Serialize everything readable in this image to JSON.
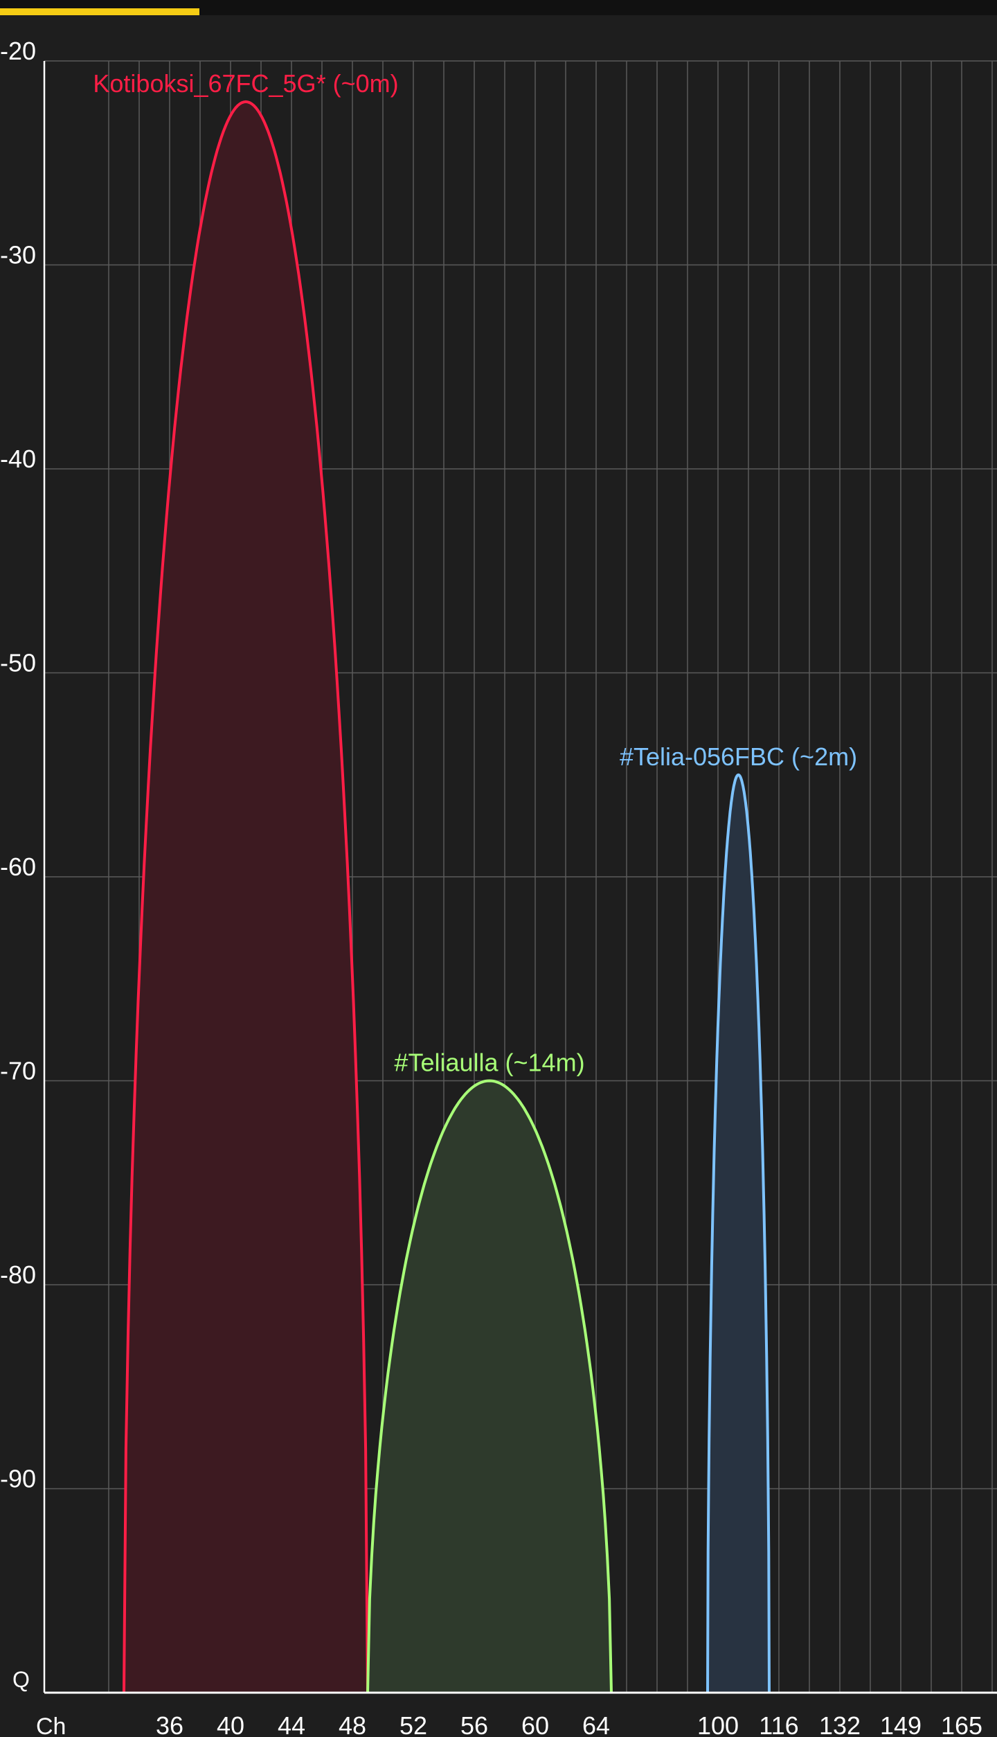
{
  "progress_bar": {
    "value": 0.2,
    "color": "#f5cc14"
  },
  "chart_data": {
    "type": "area",
    "ylim": [
      -100,
      -20
    ],
    "ylabel_bottom": "Q",
    "xlabel": "Ch",
    "y_ticks": [
      -20,
      -30,
      -40,
      -50,
      -60,
      -70,
      -80,
      -90
    ],
    "x_tick_labels": [
      "36",
      "40",
      "44",
      "48",
      "52",
      "56",
      "60",
      "64",
      "100",
      "116",
      "132",
      "149",
      "165"
    ],
    "grid": true,
    "series": [
      {
        "name": "Kotiboksi_67FC_5G* (~0m)",
        "x_start_channel": 35,
        "x_end_channel": 51,
        "peak_channel": 42,
        "peak_dbm": -22,
        "color": "#ff1e46",
        "fill": "#3d1a21"
      },
      {
        "name": "#Teliaulla (~14m)",
        "x_start_channel": 51,
        "x_end_channel": 67,
        "peak_channel": 58,
        "peak_dbm": -70,
        "color": "#a8ff78",
        "fill": "#2e3a2c"
      },
      {
        "name": "#Telia-056FBC (~2m)",
        "x_start_channel": 100,
        "x_end_channel": 116,
        "peak_channel": 108,
        "peak_dbm": -55,
        "color": "#7ec3ff",
        "fill": "#283341"
      }
    ]
  },
  "colors": {
    "background": "#1e1e1e",
    "grid": "#5a5a5a",
    "axis": "#ffffff",
    "text": "#ffffff"
  }
}
